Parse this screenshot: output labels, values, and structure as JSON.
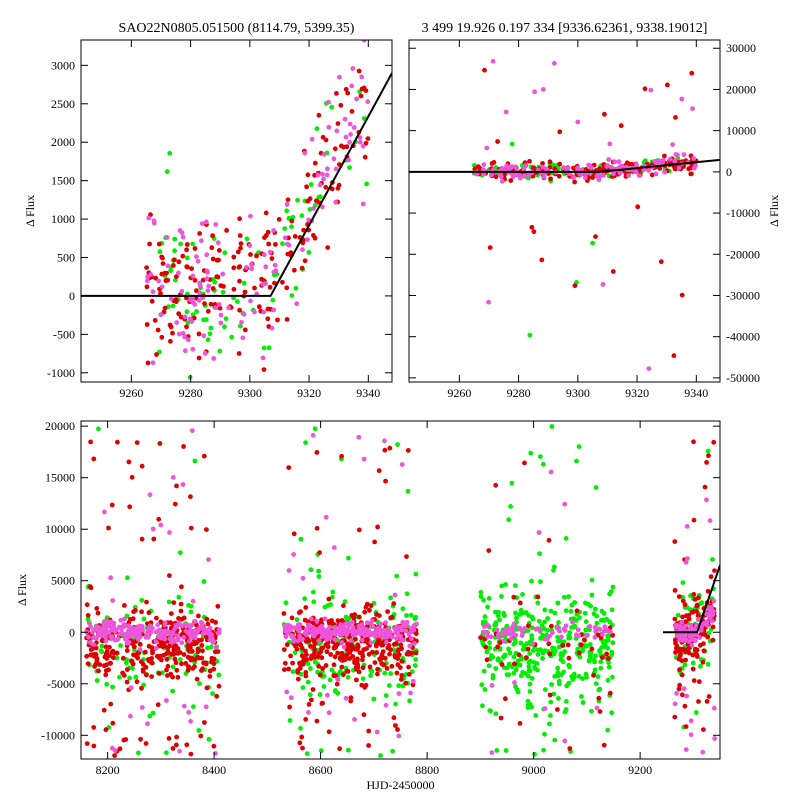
{
  "chart_data": [
    {
      "type": "scatter",
      "title": "SAO22N0805.051500 (8114.79, 5399.35)",
      "xlabel": "",
      "ylabel": "Δ Flux",
      "xlim": [
        9243,
        9348
      ],
      "ylim": [
        -1120,
        3330
      ],
      "xticks": [
        9260,
        9280,
        9300,
        9320,
        9340
      ],
      "yticks": [
        -1000,
        -500,
        0,
        500,
        1000,
        1500,
        2000,
        2500,
        3000
      ],
      "y_axis_side": "left",
      "series": [
        {
          "name": "green",
          "color": "#00ee00",
          "x_range": [
            9268,
            9340
          ],
          "n": 90,
          "seed": 11
        },
        {
          "name": "red",
          "color": "#dd0000",
          "x_range": [
            9265,
            9340
          ],
          "n": 200,
          "seed": 12
        },
        {
          "name": "magenta",
          "color": "#ee55dd",
          "x_range": [
            9265,
            9340
          ],
          "n": 130,
          "seed": 13
        }
      ],
      "fit_line": {
        "x": [
          9243,
          9307,
          9348
        ],
        "y": [
          0,
          0,
          2900
        ]
      }
    },
    {
      "type": "scatter",
      "title": "3 499 19.926 0.197 334 [9336.62361, 9338.19012]",
      "xlabel": "",
      "ylabel": "Δ Flux",
      "xlim": [
        9243,
        9348
      ],
      "ylim": [
        -51000,
        32000
      ],
      "xticks": [
        9260,
        9280,
        9300,
        9320,
        9340
      ],
      "yticks": [
        -50000,
        -40000,
        -30000,
        -20000,
        -10000,
        0,
        10000,
        20000,
        30000
      ],
      "y_axis_side": "right",
      "series": [
        {
          "name": "green",
          "color": "#00ee00",
          "x_range": [
            9265,
            9340
          ],
          "n": 90,
          "seed": 21
        },
        {
          "name": "red",
          "color": "#dd0000",
          "x_range": [
            9265,
            9340
          ],
          "n": 200,
          "seed": 22
        },
        {
          "name": "magenta",
          "color": "#ee55dd",
          "x_range": [
            9265,
            9340
          ],
          "n": 130,
          "seed": 23
        }
      ],
      "fit_line": {
        "x": [
          9243,
          9307,
          9348
        ],
        "y": [
          0,
          0,
          2900
        ]
      }
    },
    {
      "type": "scatter",
      "title": "",
      "xlabel": "HJD-2450000",
      "ylabel": "Δ Flux",
      "xlim": [
        8150,
        9350
      ],
      "ylim": [
        -12300,
        20500
      ],
      "xticks": [
        8200,
        8400,
        8600,
        8800,
        9000,
        9200
      ],
      "yticks": [
        -10000,
        -5000,
        0,
        5000,
        10000,
        15000,
        20000
      ],
      "y_axis_side": "left",
      "seasons": [
        {
          "x_range": [
            8160,
            8410
          ],
          "series": [
            {
              "name": "green",
              "color": "#00ee00",
              "n": 120,
              "seed": 31
            },
            {
              "name": "red",
              "color": "#dd0000",
              "n": 360,
              "seed": 32
            },
            {
              "name": "magenta",
              "color": "#ee55dd",
              "n": 220,
              "seed": 33
            }
          ]
        },
        {
          "x_range": [
            8530,
            8780
          ],
          "series": [
            {
              "name": "green",
              "color": "#00ee00",
              "n": 170,
              "seed": 41
            },
            {
              "name": "red",
              "color": "#dd0000",
              "n": 380,
              "seed": 42
            },
            {
              "name": "magenta",
              "color": "#ee55dd",
              "n": 230,
              "seed": 43
            }
          ]
        },
        {
          "x_range": [
            8900,
            9150
          ],
          "series": [
            {
              "name": "green",
              "color": "#00ee00",
              "n": 380,
              "seed": 51
            },
            {
              "name": "red",
              "color": "#dd0000",
              "n": 55,
              "seed": 52
            },
            {
              "name": "magenta",
              "color": "#ee55dd",
              "n": 70,
              "seed": 53
            }
          ]
        },
        {
          "x_range": [
            9265,
            9340
          ],
          "series": [
            {
              "name": "green",
              "color": "#00ee00",
              "n": 60,
              "seed": 61
            },
            {
              "name": "red",
              "color": "#dd0000",
              "n": 140,
              "seed": 62
            },
            {
              "name": "magenta",
              "color": "#ee55dd",
              "n": 90,
              "seed": 63
            }
          ]
        }
      ],
      "fit_line": {
        "x": [
          9243,
          9307,
          9350
        ],
        "y": [
          0,
          0,
          6500
        ]
      }
    }
  ]
}
